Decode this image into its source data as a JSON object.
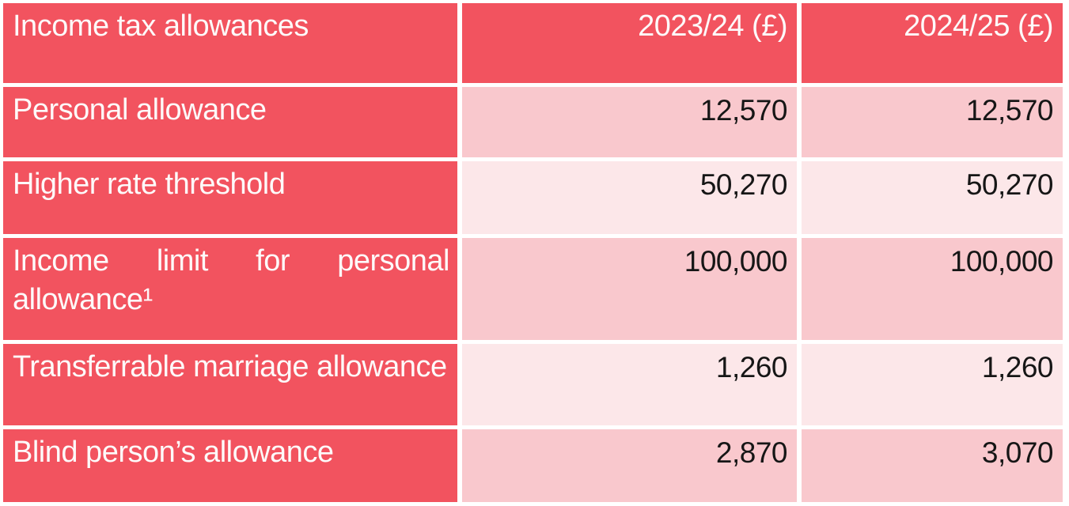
{
  "table": {
    "title": "Income tax allowances",
    "header": {
      "label": "Income tax allowances",
      "col_2023": "2023/24 (£)",
      "col_2024": "2024/25 (£)"
    },
    "rows": [
      {
        "label": "Personal allowance",
        "y2023": "12,570",
        "y2024": "12,570"
      },
      {
        "label": "Higher rate threshold",
        "y2023": "50,270",
        "y2024": "50,270"
      },
      {
        "label": "Income limit for personal allowance¹",
        "y2023": "100,000",
        "y2024": "100,000"
      },
      {
        "label": "Transferrable marriage allowance",
        "y2023": "1,260",
        "y2024": "1,260"
      },
      {
        "label": "Blind person’s allowance",
        "y2023": "2,870",
        "y2024": "3,070"
      }
    ]
  },
  "colors": {
    "red": "#f2535f",
    "pink_dark": "#f9c8cd",
    "pink_light": "#fce7e9",
    "text_dark": "#161616",
    "text_light": "#fdfafa",
    "gap_white": "#ffffff"
  },
  "chart_data": {
    "type": "table",
    "title": "Income tax allowances",
    "columns": [
      "Income tax allowances",
      "2023/24 (£)",
      "2024/25 (£)"
    ],
    "rows": [
      [
        "Personal allowance",
        12570,
        12570
      ],
      [
        "Higher rate threshold",
        50270,
        50270
      ],
      [
        "Income limit for personal allowance¹",
        100000,
        100000
      ],
      [
        "Transferrable marriage allowance",
        1260,
        1260
      ],
      [
        "Blind person’s allowance",
        2870,
        3070
      ]
    ],
    "footnote_marker": "¹",
    "layout": {
      "header_bg": "#f2535f",
      "label_column_bg": "#f2535f",
      "row_bg_odd": "#f9c8cd",
      "row_bg_even": "#fce7e9",
      "value_alignment": "right",
      "grid_lines": "white separators"
    }
  }
}
